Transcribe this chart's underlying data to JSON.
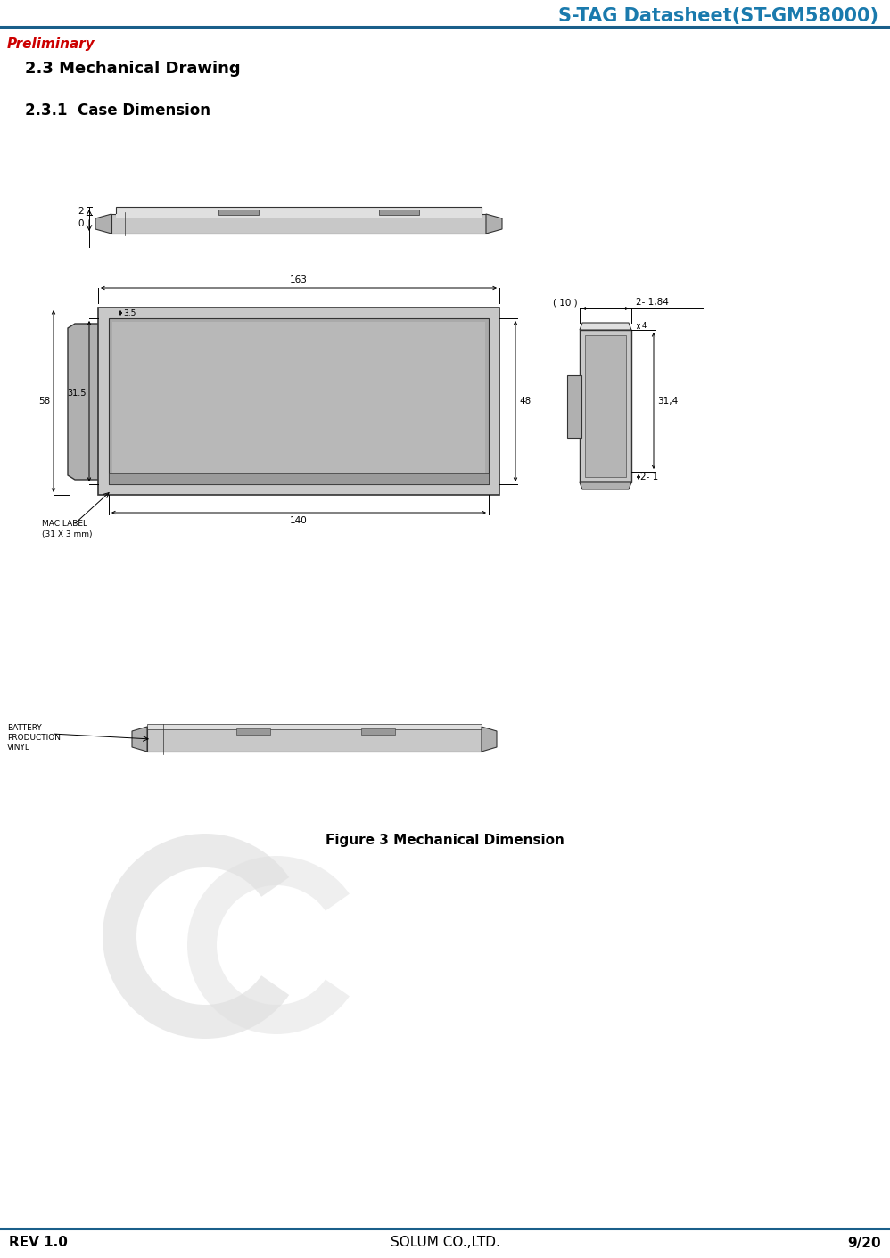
{
  "title": "S-TAG Datasheet(ST-GM58000)",
  "title_color": "#1a7aad",
  "preliminary_text": "Preliminary",
  "preliminary_color": "#cc0000",
  "section_title": "2.3 Mechanical Drawing",
  "subsection_title": "2.3.1  Case Dimension",
  "figure_caption": "Figure 3 Mechanical Dimension",
  "footer_left": "REV 1.0",
  "footer_center": "SOLUM CO.,LTD.",
  "footer_right": "9/20",
  "header_line_color": "#1a5f8a",
  "footer_line_color": "#1a5f8a",
  "bg_color": "#ffffff",
  "gray_body": "#c8c8c8",
  "gray_dark": "#999999",
  "gray_mid": "#b0b0b0",
  "gray_light": "#e0e0e0",
  "gray_screen": "#aaaaaa",
  "dim_color": "#000000",
  "line_color": "#333333"
}
